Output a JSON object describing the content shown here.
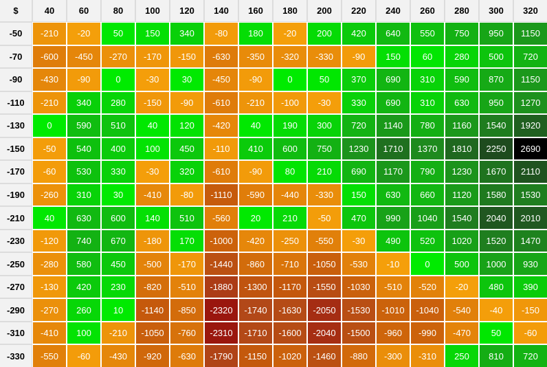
{
  "chart_data": {
    "type": "heatmap",
    "title": "",
    "x_label": "$",
    "columns": [
      40,
      60,
      80,
      100,
      120,
      140,
      160,
      180,
      200,
      220,
      240,
      260,
      280,
      300,
      320
    ],
    "row_labels": [
      -50,
      -70,
      -90,
      -110,
      -130,
      -150,
      -170,
      -190,
      -210,
      -230,
      -250,
      -270,
      -290,
      -310,
      -330
    ],
    "values": [
      [
        -210,
        -20,
        50,
        150,
        340,
        -80,
        180,
        -20,
        200,
        420,
        640,
        550,
        750,
        950,
        1150
      ],
      [
        -600,
        -450,
        -270,
        -170,
        -150,
        -630,
        -350,
        -320,
        -330,
        -90,
        150,
        60,
        280,
        500,
        720
      ],
      [
        -430,
        -90,
        0,
        -30,
        30,
        -450,
        -90,
        0,
        50,
        370,
        690,
        310,
        590,
        870,
        1150
      ],
      [
        -210,
        340,
        280,
        -150,
        -90,
        -610,
        -210,
        -100,
        -30,
        330,
        690,
        310,
        630,
        950,
        1270
      ],
      [
        0,
        590,
        510,
        40,
        120,
        -420,
        40,
        190,
        300,
        720,
        1140,
        780,
        1160,
        1540,
        1920
      ],
      [
        -50,
        540,
        400,
        100,
        450,
        -110,
        410,
        600,
        750,
        1230,
        1710,
        1370,
        1810,
        2250,
        2690
      ],
      [
        -60,
        530,
        330,
        -30,
        320,
        -610,
        -90,
        80,
        210,
        690,
        1170,
        790,
        1230,
        1670,
        2110
      ],
      [
        -260,
        310,
        30,
        -410,
        -80,
        -1110,
        -590,
        -440,
        -330,
        150,
        630,
        660,
        1120,
        1580,
        1530
      ],
      [
        40,
        630,
        600,
        140,
        510,
        -560,
        20,
        210,
        -50,
        470,
        990,
        1040,
        1540,
        2040,
        2010
      ],
      [
        -120,
        740,
        670,
        -180,
        170,
        -1000,
        -420,
        -250,
        -550,
        -30,
        490,
        520,
        1020,
        1520,
        1470
      ],
      [
        -280,
        580,
        450,
        -500,
        -170,
        -1440,
        -860,
        -710,
        -1050,
        -530,
        -10,
        0,
        500,
        1000,
        930
      ],
      [
        -130,
        420,
        230,
        -820,
        -510,
        -1880,
        -1300,
        -1170,
        -1550,
        -1030,
        -510,
        -520,
        -20,
        480,
        390
      ],
      [
        -270,
        260,
        10,
        -1140,
        -850,
        -2320,
        -1740,
        -1630,
        -2050,
        -1530,
        -1010,
        -1040,
        -540,
        -40,
        -150
      ],
      [
        -410,
        100,
        -210,
        -1050,
        -760,
        -2310,
        -1710,
        -1600,
        -2040,
        -1500,
        -960,
        -990,
        -470,
        50,
        -60
      ],
      [
        -550,
        -60,
        -430,
        -920,
        -630,
        -1790,
        -1150,
        -1020,
        -1460,
        -880,
        -300,
        -310,
        250,
        810,
        720
      ]
    ],
    "value_min": -2320,
    "value_max": 2690,
    "grid": true,
    "legend": false,
    "colors": {
      "header_bg": "#f2f2f2",
      "header_text": "#000000",
      "header_border": "#dcdcdc",
      "gap_color": "#ffffff",
      "cell_text": "#ffffff",
      "positive_scale": [
        [
          0.0,
          "#00eb00"
        ],
        [
          0.25,
          "#12b612"
        ],
        [
          0.5,
          "#1e8c1e"
        ],
        [
          0.75,
          "#205820"
        ],
        [
          0.9,
          "#1c421c"
        ],
        [
          1.0,
          "#000000"
        ]
      ],
      "negative_scale": [
        [
          0.0,
          "#f5a00a"
        ],
        [
          0.25,
          "#e07e0a"
        ],
        [
          0.5,
          "#c4580c"
        ],
        [
          0.75,
          "#b24818"
        ],
        [
          1.0,
          "#9a160e"
        ]
      ]
    }
  }
}
